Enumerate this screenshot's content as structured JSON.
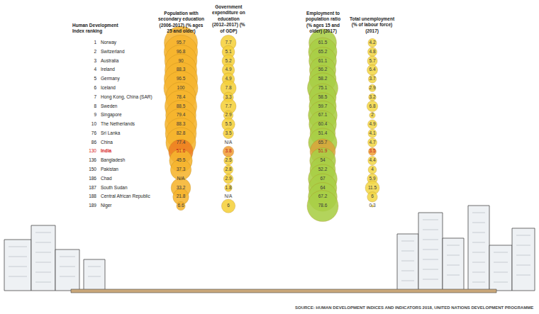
{
  "chart_data": {
    "type": "bubble",
    "row_header": "Human Development Index ranking",
    "source": "SOURCE: HUMAN DEVELOPMENT INDICES AND INDICATORS 2018, UNITED NATIONS DEVELOPMENT PROGRAMME",
    "ranks": [
      1,
      2,
      3,
      4,
      5,
      6,
      7,
      8,
      9,
      10,
      76,
      86,
      130,
      136,
      150,
      186,
      187,
      188,
      189
    ],
    "categories": [
      "Norway",
      "Switzerland",
      "Australia",
      "Ireland",
      "Germany",
      "Iceland",
      "Hong Kong, China (SAR)",
      "Sweden",
      "Singapore",
      "The Netherlands",
      "Sri Lanka",
      "China",
      "India",
      "Bangladesh",
      "Pakistan",
      "Chad",
      "South Sudan",
      "Central African Republic",
      "Niger"
    ],
    "data_labels": true,
    "tick_labels": false,
    "grid": false,
    "series": [
      {
        "name": "Population with secondary education (2006-2017) (% ages 25 and older)",
        "color": "#f6b52e",
        "colors": [
          "#f6b52e",
          "#f6b52e",
          "#f6b52e",
          "#f6b52e",
          "#f6b52e",
          "#f6b52e",
          "#f6b52e",
          "#f6b52e",
          "#f6b52e",
          "#f6b52e",
          "#f6b52e",
          "#f6b52e",
          "#ef7f22",
          "#f6b52e",
          "#f6b52e",
          "#f6b52e",
          "#f6b52e",
          "#f6b52e",
          "#f6b52e"
        ],
        "values": [
          95.7,
          96.8,
          90,
          88.3,
          96.5,
          100,
          78.4,
          88.5,
          79.4,
          88.3,
          82.8,
          77.4,
          51.6,
          45.5,
          37.3,
          null,
          33.2,
          21.8,
          6.6
        ],
        "value_labels": [
          "95.7",
          "96.8",
          "90",
          "88.3",
          "96.5",
          "100",
          "78.4",
          "88.5",
          "79.4",
          "88.3",
          "82.8",
          "77.4",
          "51.6",
          "45.5",
          "37.3",
          "N/A",
          "33.2",
          "21.8",
          "6.6"
        ]
      },
      {
        "name": "Government expenditure on education (2012–2017) (% of GDP)",
        "color": "#f5d13c",
        "colors": [
          "#f5d13c",
          "#f5d13c",
          "#f5d13c",
          "#f5d13c",
          "#f5d13c",
          "#f5d13c",
          "#f5d13c",
          "#f5d13c",
          "#f5d13c",
          "#f5d13c",
          "#f5d13c",
          "#f5d13c",
          "#f2a03a",
          "#f5d13c",
          "#f5d13c",
          "#f5d13c",
          "#f5d13c",
          "#f5d13c",
          "#f5d13c"
        ],
        "values": [
          7.7,
          5.1,
          5.2,
          4.9,
          4.9,
          7.8,
          3.3,
          7.7,
          2.9,
          5.5,
          3.5,
          null,
          3.8,
          2.5,
          2.8,
          2.9,
          1.8,
          null,
          6
        ],
        "value_labels": [
          "7.7",
          "5.1",
          "5.2",
          "4.9",
          "4.9",
          "7.8",
          "3.3",
          "7.7",
          "2.9",
          "5.5",
          "3.5",
          "N/A",
          "3.8",
          "2.5",
          "2.8",
          "2.9",
          "1.8",
          "N/A",
          "6"
        ]
      },
      {
        "name": "Employment to population ratio (% ages 15 and older) (2017)",
        "color": "#a9cf46",
        "colors": [
          "#a9cf46",
          "#a9cf46",
          "#a9cf46",
          "#a9cf46",
          "#a9cf46",
          "#a9cf46",
          "#a9cf46",
          "#a9cf46",
          "#a9cf46",
          "#a9cf46",
          "#a9cf46",
          "#a9cf46",
          "#d9a63c",
          "#a9cf46",
          "#a9cf46",
          "#a9cf46",
          "#a9cf46",
          "#a9cf46",
          "#a9cf46"
        ],
        "values": [
          61.5,
          65.2,
          61.1,
          56.2,
          58.2,
          75.1,
          58.5,
          59.7,
          67.1,
          60.4,
          51.4,
          65.7,
          51.9,
          54,
          52.2,
          67,
          64,
          67.2,
          78.6
        ],
        "value_labels": [
          "61.5",
          "65.2",
          "61.1",
          "56.2",
          "58.2",
          "75.1",
          "58.5",
          "59.7",
          "67.1",
          "60.4",
          "51.4",
          "65.7",
          "51.9",
          "54",
          "52.2",
          "67",
          "64",
          "67.2",
          "78.6"
        ]
      },
      {
        "name": "Total unemployment (% of labour force) (2017)",
        "color": "#f3d848",
        "colors": [
          "#f3d848",
          "#f3d848",
          "#f3d848",
          "#f3d848",
          "#f3d848",
          "#f3d848",
          "#f3d848",
          "#f3d848",
          "#f3d848",
          "#f3d848",
          "#f3d848",
          "#f3d848",
          "#f2a03a",
          "#f3d848",
          "#f3d848",
          "#f3d848",
          "#f3d848",
          "#f3d848",
          "#f3d848"
        ],
        "values": [
          4.2,
          4.8,
          5.7,
          6.4,
          3.7,
          2.9,
          3.2,
          6.8,
          2,
          4.9,
          4.1,
          4.7,
          3.5,
          4.4,
          4,
          5.9,
          11.5,
          6,
          0.3
        ],
        "value_labels": [
          "4.2",
          "4.8",
          "5.7",
          "6.4",
          "3.7",
          "2.9",
          "3.2",
          "6.8",
          "2",
          "4.9",
          "4.1",
          "4.7",
          "3.5",
          "4.4",
          "4",
          "5.9",
          "11.5",
          "6",
          "0.3"
        ]
      }
    ]
  }
}
